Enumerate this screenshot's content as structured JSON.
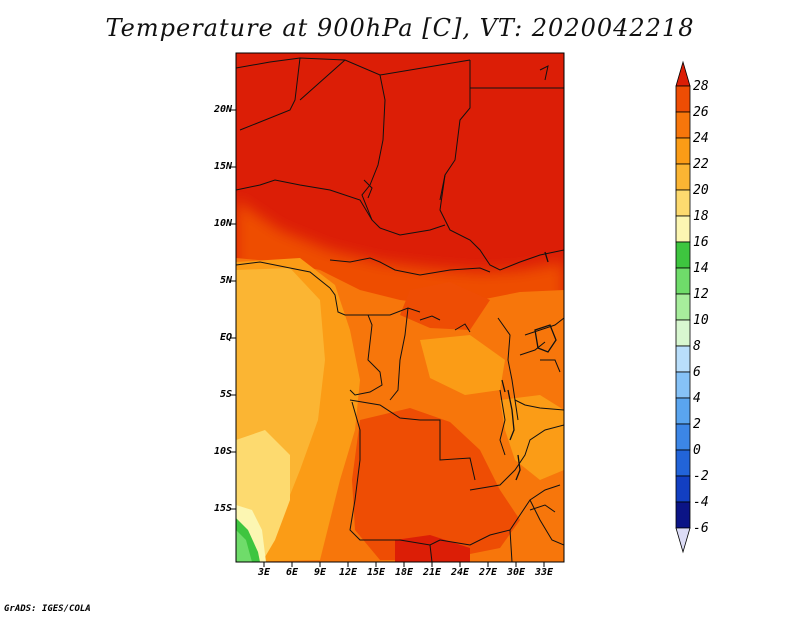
{
  "title": "Temperature at 900hPa [C], VT: 2020042218",
  "credit": "GrADS: IGES/COLA",
  "map": {
    "variable": "Temperature",
    "level": "900hPa",
    "units": "C",
    "valid_time": "2020042218",
    "lat_labels": [
      "20N",
      "15N",
      "10N",
      "5N",
      "EQ",
      "5S",
      "10S",
      "15S"
    ],
    "lon_labels": [
      "3E",
      "6E",
      "9E",
      "12E",
      "15E",
      "18E",
      "21E",
      "24E",
      "27E",
      "30E",
      "33E"
    ]
  },
  "colorbar": {
    "levels": [
      "28",
      "26",
      "24",
      "22",
      "20",
      "18",
      "16",
      "14",
      "12",
      "10",
      "8",
      "6",
      "4",
      "2",
      "0",
      "-2",
      "-4",
      "-6"
    ],
    "colors": [
      "#dc1e06",
      "#ee4d04",
      "#f7760b",
      "#fb9c16",
      "#fbb533",
      "#fdda6f",
      "#fcf6b2",
      "#3ec53f",
      "#6fdc6a",
      "#a7ed9c",
      "#d8f7d0",
      "#b9defb",
      "#86c2f7",
      "#5aa5ef",
      "#3c86e6",
      "#2264d9",
      "#123fc2",
      "#0b1486",
      "#dcdcf6"
    ]
  }
}
